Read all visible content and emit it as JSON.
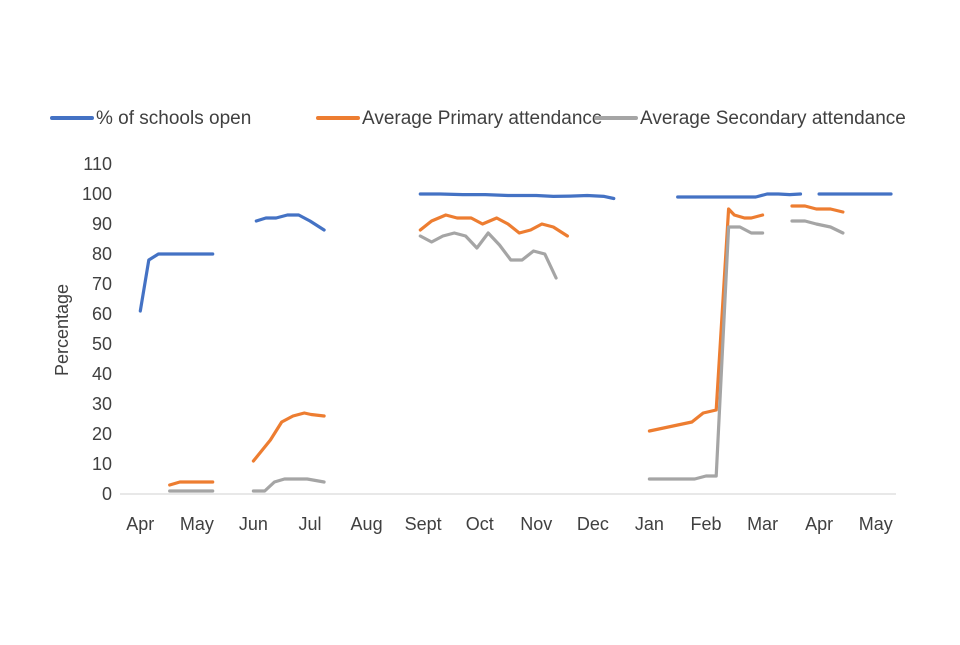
{
  "chart_data": {
    "type": "line",
    "title": "",
    "xlabel": "",
    "ylabel": "Percentage",
    "ylim": [
      0,
      110
    ],
    "yticks": [
      0,
      10,
      20,
      30,
      40,
      50,
      60,
      70,
      80,
      90,
      100,
      110
    ],
    "xlim": [
      0,
      14
    ],
    "x_tick_labels": [
      {
        "label": "Apr",
        "x": 0.5
      },
      {
        "label": "May",
        "x": 1.5
      },
      {
        "label": "Jun",
        "x": 2.5
      },
      {
        "label": "Jul",
        "x": 3.5
      },
      {
        "label": "Aug",
        "x": 4.5
      },
      {
        "label": "Sept",
        "x": 5.5
      },
      {
        "label": "Oct",
        "x": 6.5
      },
      {
        "label": "Nov",
        "x": 7.5
      },
      {
        "label": "Dec",
        "x": 8.5
      },
      {
        "label": "Jan",
        "x": 9.5
      },
      {
        "label": "Feb",
        "x": 10.5
      },
      {
        "label": "Mar",
        "x": 11.5
      },
      {
        "label": "Apr",
        "x": 12.5
      },
      {
        "label": "May",
        "x": 13.5
      }
    ],
    "legend": {
      "position": "top"
    },
    "series": [
      {
        "name": "% of schools open",
        "color": "#4472C4",
        "segments": [
          [
            [
              0.5,
              61
            ],
            [
              0.65,
              78
            ],
            [
              0.82,
              80
            ],
            [
              1.12,
              80
            ],
            [
              1.4,
              80
            ],
            [
              1.62,
              80
            ],
            [
              1.78,
              80
            ]
          ],
          [
            [
              2.55,
              91
            ],
            [
              2.72,
              92
            ],
            [
              2.9,
              92
            ],
            [
              3.1,
              93
            ],
            [
              3.3,
              93
            ],
            [
              3.5,
              91
            ],
            [
              3.75,
              88
            ]
          ],
          [
            [
              5.45,
              100
            ],
            [
              5.8,
              100
            ],
            [
              6.2,
              99.8
            ],
            [
              6.6,
              99.8
            ],
            [
              7.0,
              99.5
            ],
            [
              7.2,
              99.5
            ],
            [
              7.5,
              99.5
            ],
            [
              7.8,
              99.2
            ],
            [
              8.1,
              99.3
            ],
            [
              8.4,
              99.5
            ],
            [
              8.7,
              99.2
            ],
            [
              8.87,
              98.5
            ]
          ],
          [
            [
              10.0,
              99
            ],
            [
              10.4,
              99
            ],
            [
              10.8,
              99
            ],
            [
              11.1,
              99
            ],
            [
              11.38,
              99
            ],
            [
              11.58,
              100
            ],
            [
              11.78,
              100
            ],
            [
              11.98,
              99.8
            ],
            [
              12.17,
              100
            ]
          ],
          [
            [
              12.5,
              100
            ],
            [
              12.8,
              100
            ],
            [
              13.1,
              100
            ],
            [
              13.4,
              100
            ],
            [
              13.77,
              100
            ]
          ]
        ]
      },
      {
        "name": "Average Primary attendance",
        "color": "#ED7D31",
        "segments": [
          [
            [
              1.02,
              3
            ],
            [
              1.2,
              4
            ],
            [
              1.4,
              4
            ],
            [
              1.6,
              4
            ],
            [
              1.78,
              4
            ]
          ],
          [
            [
              2.5,
              11
            ],
            [
              2.8,
              18
            ],
            [
              3.0,
              24
            ],
            [
              3.2,
              26
            ],
            [
              3.4,
              27
            ],
            [
              3.52,
              26.5
            ],
            [
              3.75,
              26
            ]
          ],
          [
            [
              5.45,
              88
            ],
            [
              5.65,
              91
            ],
            [
              5.9,
              93
            ],
            [
              6.1,
              92
            ],
            [
              6.35,
              92
            ],
            [
              6.55,
              90
            ],
            [
              6.8,
              92
            ],
            [
              7.0,
              90
            ],
            [
              7.2,
              87
            ],
            [
              7.4,
              88
            ],
            [
              7.6,
              90
            ],
            [
              7.8,
              89
            ],
            [
              8.05,
              86
            ]
          ],
          [
            [
              9.5,
              21
            ],
            [
              9.75,
              22
            ],
            [
              10.0,
              23
            ],
            [
              10.25,
              24
            ],
            [
              10.45,
              27
            ],
            [
              10.68,
              28
            ],
            [
              10.9,
              95
            ],
            [
              11.0,
              93
            ],
            [
              11.18,
              92
            ],
            [
              11.3,
              92
            ],
            [
              11.5,
              93
            ]
          ],
          [
            [
              12.02,
              96
            ],
            [
              12.25,
              96
            ],
            [
              12.45,
              95
            ],
            [
              12.7,
              95
            ],
            [
              12.92,
              94
            ]
          ]
        ]
      },
      {
        "name": "Average Secondary attendance",
        "color": "#A5A5A5",
        "segments": [
          [
            [
              1.02,
              1
            ],
            [
              1.3,
              1
            ],
            [
              1.6,
              1
            ],
            [
              1.78,
              1
            ]
          ],
          [
            [
              2.5,
              1
            ],
            [
              2.7,
              1
            ],
            [
              2.87,
              4
            ],
            [
              3.05,
              5
            ],
            [
              3.25,
              5
            ],
            [
              3.45,
              5
            ],
            [
              3.75,
              4
            ]
          ],
          [
            [
              5.45,
              86
            ],
            [
              5.65,
              84
            ],
            [
              5.85,
              86
            ],
            [
              6.05,
              87
            ],
            [
              6.25,
              86
            ],
            [
              6.45,
              82
            ],
            [
              6.65,
              87
            ],
            [
              6.85,
              83
            ],
            [
              7.05,
              78
            ],
            [
              7.25,
              78
            ],
            [
              7.45,
              81
            ],
            [
              7.65,
              80
            ],
            [
              7.85,
              72
            ]
          ],
          [
            [
              9.5,
              5
            ],
            [
              9.8,
              5
            ],
            [
              10.1,
              5
            ],
            [
              10.3,
              5
            ],
            [
              10.5,
              6
            ],
            [
              10.68,
              6
            ],
            [
              10.9,
              89
            ],
            [
              11.1,
              89
            ],
            [
              11.3,
              87
            ],
            [
              11.5,
              87
            ]
          ],
          [
            [
              12.02,
              91
            ],
            [
              12.25,
              91
            ],
            [
              12.45,
              90
            ],
            [
              12.7,
              89
            ],
            [
              12.92,
              87
            ]
          ]
        ]
      }
    ]
  }
}
